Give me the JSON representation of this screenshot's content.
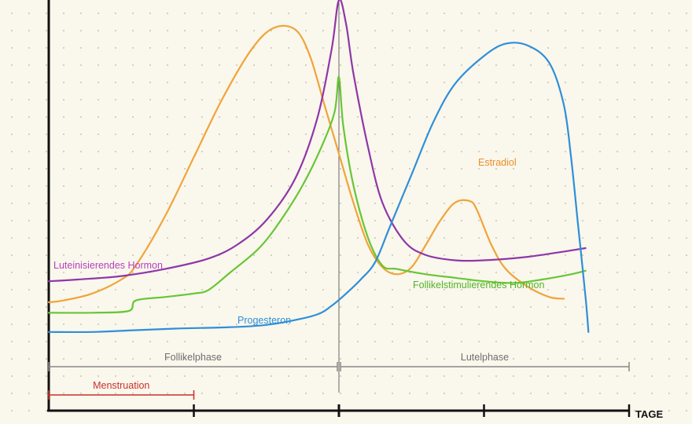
{
  "chart_data": {
    "type": "line",
    "title": "",
    "xlabel": "TAGE",
    "ylabel": "",
    "x_range": [
      0,
      4
    ],
    "y_range": [
      0,
      1
    ],
    "grid": "dotted",
    "series": [
      {
        "name": "Estradiol",
        "color": "#f0a43a",
        "points": [
          [
            0,
            0.135
          ],
          [
            0.1,
            0.14
          ],
          [
            0.3,
            0.16
          ],
          [
            0.5,
            0.2
          ],
          [
            0.6,
            0.24
          ],
          [
            0.8,
            0.38
          ],
          [
            1.0,
            0.55
          ],
          [
            1.2,
            0.72
          ],
          [
            1.4,
            0.86
          ],
          [
            1.55,
            0.92
          ],
          [
            1.7,
            0.915
          ],
          [
            1.8,
            0.84
          ],
          [
            1.9,
            0.7
          ],
          [
            2.0,
            0.56
          ],
          [
            2.1,
            0.42
          ],
          [
            2.2,
            0.3
          ],
          [
            2.3,
            0.235
          ],
          [
            2.4,
            0.215
          ],
          [
            2.5,
            0.235
          ],
          [
            2.6,
            0.3
          ],
          [
            2.7,
            0.37
          ],
          [
            2.8,
            0.42
          ],
          [
            2.9,
            0.425
          ],
          [
            2.95,
            0.4
          ],
          [
            3.05,
            0.3
          ],
          [
            3.15,
            0.23
          ],
          [
            3.3,
            0.18
          ],
          [
            3.45,
            0.15
          ],
          [
            3.55,
            0.145
          ]
        ]
      },
      {
        "name": "Luteinisierendes Hormon",
        "color": "#8e37a8",
        "points": [
          [
            0,
            0.195
          ],
          [
            0.2,
            0.2
          ],
          [
            0.5,
            0.21
          ],
          [
            0.8,
            0.23
          ],
          [
            1.1,
            0.26
          ],
          [
            1.3,
            0.3
          ],
          [
            1.5,
            0.37
          ],
          [
            1.7,
            0.49
          ],
          [
            1.85,
            0.66
          ],
          [
            1.95,
            0.86
          ],
          [
            2.0,
            1.0
          ],
          [
            2.05,
            0.93
          ],
          [
            2.1,
            0.79
          ],
          [
            2.2,
            0.58
          ],
          [
            2.3,
            0.42
          ],
          [
            2.45,
            0.31
          ],
          [
            2.6,
            0.27
          ],
          [
            2.8,
            0.255
          ],
          [
            3.0,
            0.255
          ],
          [
            3.3,
            0.265
          ],
          [
            3.55,
            0.28
          ],
          [
            3.7,
            0.29
          ]
        ]
      },
      {
        "name": "Follikelstimulierendes Hormon",
        "color": "#67c637",
        "points": [
          [
            0,
            0.105
          ],
          [
            0.3,
            0.105
          ],
          [
            0.55,
            0.11
          ],
          [
            0.6,
            0.14
          ],
          [
            0.8,
            0.15
          ],
          [
            1.0,
            0.16
          ],
          [
            1.1,
            0.17
          ],
          [
            1.25,
            0.22
          ],
          [
            1.45,
            0.29
          ],
          [
            1.6,
            0.37
          ],
          [
            1.75,
            0.47
          ],
          [
            1.88,
            0.58
          ],
          [
            1.97,
            0.68
          ],
          [
            2.0,
            0.78
          ],
          [
            2.03,
            0.64
          ],
          [
            2.1,
            0.47
          ],
          [
            2.2,
            0.32
          ],
          [
            2.3,
            0.24
          ],
          [
            2.4,
            0.23
          ],
          [
            2.6,
            0.215
          ],
          [
            2.8,
            0.205
          ],
          [
            3.0,
            0.195
          ],
          [
            3.2,
            0.19
          ],
          [
            3.4,
            0.2
          ],
          [
            3.6,
            0.215
          ],
          [
            3.7,
            0.225
          ]
        ]
      },
      {
        "name": "Progesteron",
        "color": "#2e8fd9",
        "points": [
          [
            0,
            0.05
          ],
          [
            0.3,
            0.05
          ],
          [
            0.6,
            0.055
          ],
          [
            0.9,
            0.06
          ],
          [
            1.2,
            0.063
          ],
          [
            1.45,
            0.068
          ],
          [
            1.65,
            0.08
          ],
          [
            1.85,
            0.1
          ],
          [
            1.95,
            0.125
          ],
          [
            2.05,
            0.16
          ],
          [
            2.15,
            0.2
          ],
          [
            2.25,
            0.25
          ],
          [
            2.35,
            0.35
          ],
          [
            2.5,
            0.5
          ],
          [
            2.65,
            0.65
          ],
          [
            2.8,
            0.76
          ],
          [
            3.0,
            0.84
          ],
          [
            3.15,
            0.875
          ],
          [
            3.3,
            0.87
          ],
          [
            3.45,
            0.82
          ],
          [
            3.55,
            0.7
          ],
          [
            3.6,
            0.55
          ],
          [
            3.65,
            0.35
          ],
          [
            3.7,
            0.15
          ],
          [
            3.72,
            0.05
          ]
        ]
      }
    ],
    "annotations": [
      {
        "text": "Luteinisierendes Hormon",
        "color": "#b440c0"
      },
      {
        "text": "Estradiol",
        "color": "#e8902a"
      },
      {
        "text": "Follikelstimulierendes Hormon",
        "color": "#52b325"
      },
      {
        "text": "Progesteron",
        "color": "#2e8fd9"
      }
    ],
    "phases": [
      {
        "name": "Follikelphase",
        "start": 0,
        "end": 2,
        "color": "#888888"
      },
      {
        "name": "Lutelphase",
        "start": 2,
        "end": 4,
        "color": "#888888"
      },
      {
        "name": "Menstruation",
        "start": 0,
        "end": 1,
        "color": "#c9302c"
      }
    ],
    "ovulation_day": 2
  }
}
